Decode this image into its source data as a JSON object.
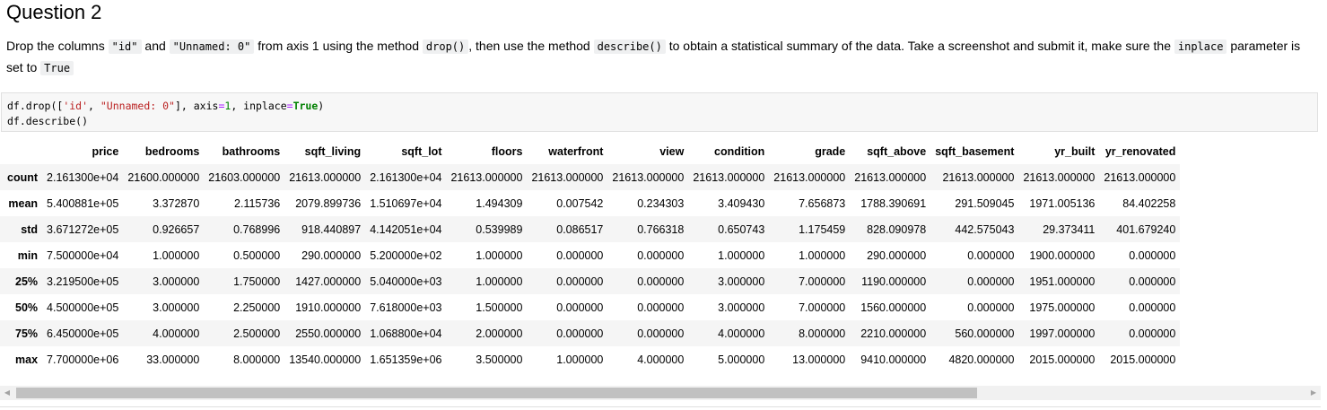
{
  "heading": "Question 2",
  "instruction": {
    "t1": "Drop the columns ",
    "c1": "\"id\"",
    "t2": " and ",
    "c2": "\"Unnamed: 0\"",
    "t3": " from axis 1 using the method ",
    "c3": "drop()",
    "t4": ", then use the method ",
    "c4": "describe()",
    "t5": " to obtain a statistical summary of the data. Take a screenshot and submit it, make sure the ",
    "c5": "inplace",
    "t6": " parameter is set to ",
    "c6": "True"
  },
  "code": {
    "line1": {
      "a": "df.drop([",
      "s1": "'id'",
      "b": ", ",
      "s2": "\"Unnamed: 0\"",
      "c": "], axis",
      "eq1": "=",
      "n1": "1",
      "d": ", inplace",
      "eq2": "=",
      "kw": "True",
      "e": ")"
    },
    "line2": "df.describe()"
  },
  "table": {
    "columns": [
      "price",
      "bedrooms",
      "bathrooms",
      "sqft_living",
      "sqft_lot",
      "floors",
      "waterfront",
      "view",
      "condition",
      "grade",
      "sqft_above",
      "sqft_basement",
      "yr_built",
      "yr_renovated"
    ],
    "rows": [
      {
        "label": "count",
        "values": [
          "2.161300e+04",
          "21600.000000",
          "21603.000000",
          "21613.000000",
          "2.161300e+04",
          "21613.000000",
          "21613.000000",
          "21613.000000",
          "21613.000000",
          "21613.000000",
          "21613.000000",
          "21613.000000",
          "21613.000000",
          "21613.000000"
        ]
      },
      {
        "label": "mean",
        "values": [
          "5.400881e+05",
          "3.372870",
          "2.115736",
          "2079.899736",
          "1.510697e+04",
          "1.494309",
          "0.007542",
          "0.234303",
          "3.409430",
          "7.656873",
          "1788.390691",
          "291.509045",
          "1971.005136",
          "84.402258"
        ]
      },
      {
        "label": "std",
        "values": [
          "3.671272e+05",
          "0.926657",
          "0.768996",
          "918.440897",
          "4.142051e+04",
          "0.539989",
          "0.086517",
          "0.766318",
          "0.650743",
          "1.175459",
          "828.090978",
          "442.575043",
          "29.373411",
          "401.679240"
        ]
      },
      {
        "label": "min",
        "values": [
          "7.500000e+04",
          "1.000000",
          "0.500000",
          "290.000000",
          "5.200000e+02",
          "1.000000",
          "0.000000",
          "0.000000",
          "1.000000",
          "1.000000",
          "290.000000",
          "0.000000",
          "1900.000000",
          "0.000000"
        ]
      },
      {
        "label": "25%",
        "values": [
          "3.219500e+05",
          "3.000000",
          "1.750000",
          "1427.000000",
          "5.040000e+03",
          "1.000000",
          "0.000000",
          "0.000000",
          "3.000000",
          "7.000000",
          "1190.000000",
          "0.000000",
          "1951.000000",
          "0.000000"
        ]
      },
      {
        "label": "50%",
        "values": [
          "4.500000e+05",
          "3.000000",
          "2.250000",
          "1910.000000",
          "7.618000e+03",
          "1.500000",
          "0.000000",
          "0.000000",
          "3.000000",
          "7.000000",
          "1560.000000",
          "0.000000",
          "1975.000000",
          "0.000000"
        ]
      },
      {
        "label": "75%",
        "values": [
          "6.450000e+05",
          "4.000000",
          "2.500000",
          "2550.000000",
          "1.068800e+04",
          "2.000000",
          "0.000000",
          "0.000000",
          "4.000000",
          "8.000000",
          "2210.000000",
          "560.000000",
          "1997.000000",
          "0.000000"
        ]
      },
      {
        "label": "max",
        "values": [
          "7.700000e+06",
          "33.000000",
          "8.000000",
          "13540.000000",
          "1.651359e+06",
          "3.500000",
          "1.000000",
          "4.000000",
          "5.000000",
          "13.000000",
          "9410.000000",
          "4820.000000",
          "2015.000000",
          "2015.000000"
        ]
      }
    ]
  },
  "scrollbar": {
    "left_icon": "arrow-left-icon",
    "right_icon": "arrow-right-icon",
    "left_glyph": "◀",
    "right_glyph": "▶"
  }
}
